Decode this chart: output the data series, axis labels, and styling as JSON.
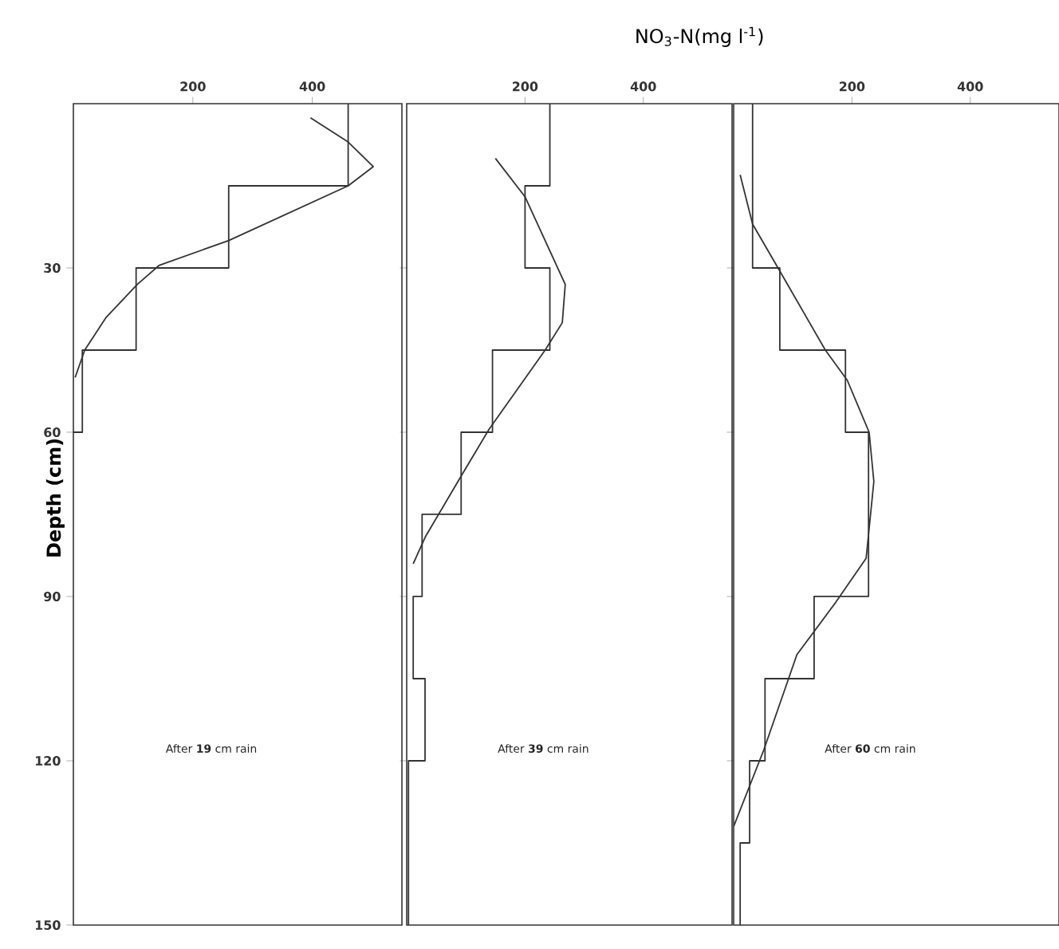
{
  "chart_data": [
    {
      "type": "line",
      "ylabel": "Depth (cm)",
      "xlim": [
        0,
        550
      ],
      "ylim": [
        150,
        0
      ],
      "xticks": [
        200,
        400
      ],
      "yticks": [
        30,
        60,
        90,
        120,
        150
      ],
      "grid": false,
      "marker": "none",
      "line_style": "solid",
      "annotations": [
        "After **19** cm rain"
      ],
      "series": [
        {
          "color": "#333333",
          "x": [
            460,
            460,
            260,
            260,
            105,
            105,
            15,
            15,
            0
          ],
          "values": [
            0,
            15,
            15,
            30,
            30,
            45,
            45,
            60,
            60
          ]
        },
        {
          "color": "#333333",
          "x": [
            397,
            460,
            502,
            460,
            260,
            144,
            107,
            55,
            19,
            3
          ],
          "values": [
            2.6,
            7,
            11.5,
            15,
            25,
            29.5,
            33,
            39,
            45,
            50
          ]
        }
      ]
    },
    {
      "type": "line",
      "xlabel": "NO$_{3}$-N(mg l$^{-1}$)",
      "xlim": [
        0,
        550
      ],
      "ylim": [
        150,
        0
      ],
      "xticks": [
        200,
        400
      ],
      "yticks": [
        30,
        60,
        90,
        120
      ],
      "tick_labels": "x",
      "grid": false,
      "marker": "none",
      "line_style": "solid",
      "annotations": [
        "After **39** cm rain"
      ],
      "series": [
        {
          "color": "#333333",
          "x": [
            242,
            242,
            200,
            200,
            242,
            242,
            145,
            145,
            92,
            92,
            26,
            26,
            11,
            11,
            31,
            31,
            3,
            3
          ],
          "values": [
            0,
            15,
            15,
            30,
            30,
            45,
            45,
            60,
            60,
            75,
            75,
            90,
            90,
            105,
            105,
            120,
            120,
            150
          ]
        },
        {
          "color": "#333333",
          "x": [
            150,
            200,
            268,
            263,
            234,
            139,
            92,
            32,
            11
          ],
          "values": [
            10,
            17,
            33,
            40,
            45,
            59.5,
            68,
            79,
            84
          ]
        }
      ]
    },
    {
      "type": "line",
      "xlim": [
        0,
        550
      ],
      "ylim": [
        150,
        0
      ],
      "xticks": [
        200,
        400
      ],
      "yticks": [
        30,
        60,
        90,
        120
      ],
      "tick_labels": "x",
      "grid": false,
      "marker": "none",
      "line_style": "solid",
      "annotations": [
        "After **60** cm rain"
      ],
      "series": [
        {
          "color": "#333333",
          "x": [
            32,
            32,
            78,
            78,
            189,
            189,
            228,
            228,
            136,
            136,
            53,
            53,
            27,
            27,
            11,
            11
          ],
          "values": [
            0,
            30,
            30,
            45,
            45,
            60,
            60,
            90,
            90,
            105,
            105,
            120,
            120,
            135,
            135,
            150
          ]
        },
        {
          "color": "#333333",
          "x": [
            11,
            32,
            75,
            155,
            192,
            229,
            237,
            224,
            173,
            107,
            51,
            0
          ],
          "values": [
            13,
            22,
            30,
            45,
            50.5,
            60,
            69,
            83,
            91,
            100.6,
            118,
            132
          ]
        }
      ]
    }
  ]
}
